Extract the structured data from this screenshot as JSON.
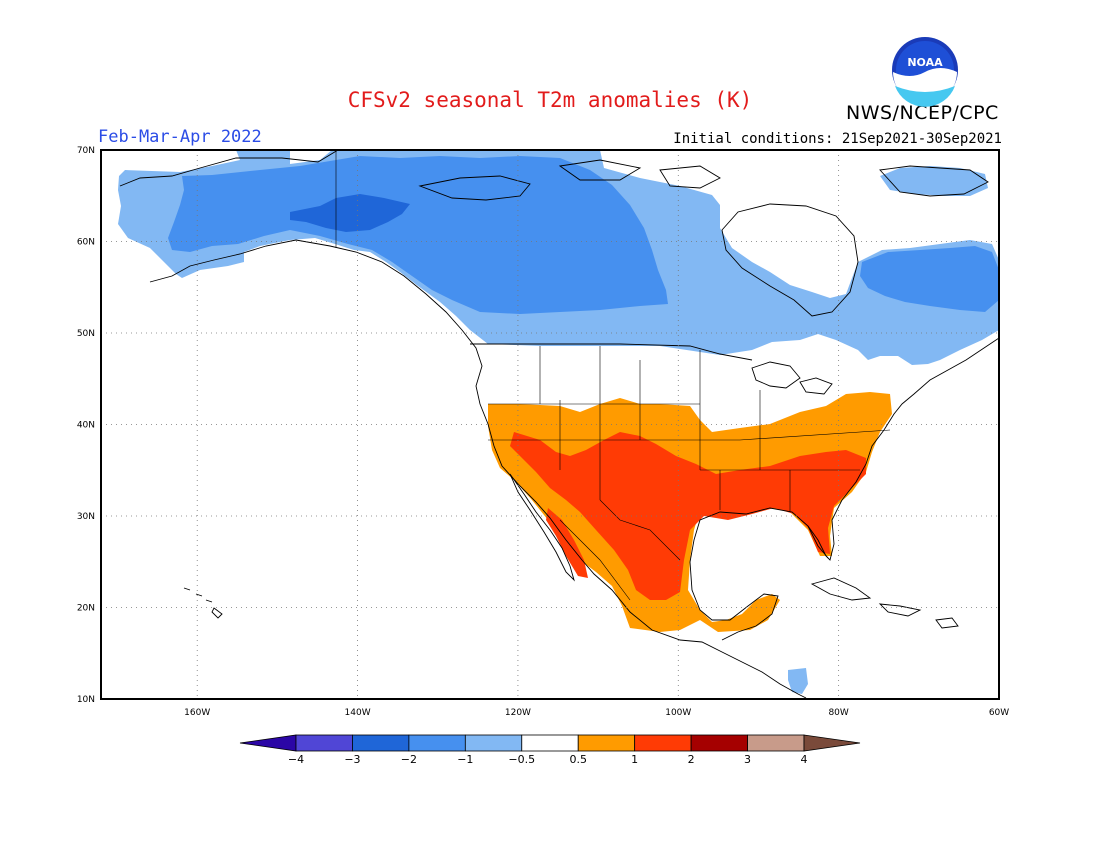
{
  "title": "CFSv2 seasonal T2m anomalies (K)",
  "organization": "NWS/NCEP/CPC",
  "logo_text": "NOAA",
  "season": "Feb-Mar-Apr 2022",
  "initial_conditions": "Initial conditions: 21Sep2021-30Sep2021",
  "map": {
    "lon_range": [
      -172,
      -60
    ],
    "lat_range": [
      10,
      70
    ],
    "lon_ticks": [
      {
        "value": -160,
        "label": "160W"
      },
      {
        "value": -140,
        "label": "140W"
      },
      {
        "value": -120,
        "label": "120W"
      },
      {
        "value": -100,
        "label": "100W"
      },
      {
        "value": -80,
        "label": "80W"
      },
      {
        "value": -60,
        "label": "60W"
      }
    ],
    "lat_ticks": [
      {
        "value": 10,
        "label": "10N"
      },
      {
        "value": 20,
        "label": "20N"
      },
      {
        "value": 30,
        "label": "30N"
      },
      {
        "value": 40,
        "label": "40N"
      },
      {
        "value": 50,
        "label": "50N"
      },
      {
        "value": 60,
        "label": "60N"
      },
      {
        "value": 70,
        "label": "70N"
      }
    ],
    "grid": true,
    "gridline_style": "dotted"
  },
  "colorbar": {
    "levels": [
      "-4",
      "-3",
      "-2",
      "-1",
      "-0.5",
      "0.5",
      "1",
      "2",
      "3",
      "4"
    ],
    "colors": [
      "#2b06a6",
      "#5046d6",
      "#1f66d8",
      "#4690ef",
      "#82b8f3",
      "#ffffff",
      "#ff9b00",
      "#ff3b05",
      "#a50000",
      "#c89b8a",
      "#7a4a3a"
    ]
  },
  "anomaly_regions": [
    {
      "name": "canada-alaska-cold",
      "category": "-1 to -0.5",
      "color": "#82b8f3"
    },
    {
      "name": "canada-core-cold",
      "category": "-2 to -1",
      "color": "#4690ef"
    },
    {
      "name": "yukon-cold-core",
      "category": "-3 to -2",
      "color": "#1f66d8"
    },
    {
      "name": "us-southern-warm",
      "category": "0.5 to 1",
      "color": "#ff9b00"
    },
    {
      "name": "us-south-central-warm",
      "category": "1 to 2",
      "color": "#ff3b05"
    },
    {
      "name": "central-america-cold-spot",
      "category": "-1 to -0.5",
      "color": "#82b8f3"
    }
  ]
}
